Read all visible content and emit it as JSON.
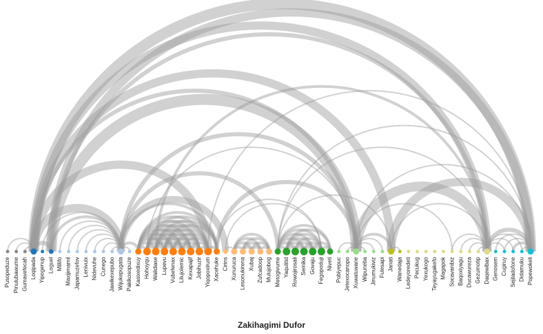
{
  "chart_data": {
    "type": "arc",
    "title": "Zakihagimi Dufor",
    "colors": {
      "arc": "#999999",
      "label": "#222222",
      "groups": [
        "#888888",
        "#1f77b4",
        "#aec7e8",
        "#ff7f0e",
        "#ffbb78",
        "#2ca02c",
        "#98df8a",
        "#bcbd22",
        "#dbdb8d",
        "#17becf",
        "#9edae5",
        "#e377c2"
      ]
    },
    "nodes": [
      {
        "name": "Pusopeduze",
        "group": 0,
        "size": 1
      },
      {
        "name": "Pinulubawume",
        "group": 0,
        "size": 1
      },
      {
        "name": "Gumavefecah",
        "group": 0,
        "size": 1
      },
      {
        "name": "Loqipada",
        "group": 1,
        "size": 3
      },
      {
        "name": "Yipogenup",
        "group": 1,
        "size": 1
      },
      {
        "name": "Loguel",
        "group": 1,
        "size": 2
      },
      {
        "name": "Millifo",
        "group": 2,
        "size": 1
      },
      {
        "name": "Maxijimamil",
        "group": 2,
        "size": 1
      },
      {
        "name": "Japamuzefov",
        "group": 2,
        "size": 1
      },
      {
        "name": "Lenivuix",
        "group": 2,
        "size": 1
      },
      {
        "name": "Nidevuhe",
        "group": 2,
        "size": 1
      },
      {
        "name": "Cunego",
        "group": 2,
        "size": 1
      },
      {
        "name": "Jawikexepubo",
        "group": 2,
        "size": 1
      },
      {
        "name": "Wijukepugata",
        "group": 2,
        "size": 3
      },
      {
        "name": "Pakikosopuze",
        "group": 2,
        "size": 1
      },
      {
        "name": "Kasixedixuy",
        "group": 3,
        "size": 3
      },
      {
        "name": "Hohoyqu",
        "group": 3,
        "size": 4
      },
      {
        "name": "Walidiase",
        "group": 3,
        "size": 4
      },
      {
        "name": "Lupevu",
        "group": 3,
        "size": 4
      },
      {
        "name": "Vubefenax",
        "group": 3,
        "size": 4
      },
      {
        "name": "Lilujolemic",
        "group": 3,
        "size": 4
      },
      {
        "name": "Kexapajif",
        "group": 3,
        "size": 4
      },
      {
        "name": "Jobihuzir",
        "group": 3,
        "size": 4
      },
      {
        "name": "Yiqopoxirum",
        "group": 3,
        "size": 4
      },
      {
        "name": "Xacehuke",
        "group": 3,
        "size": 3
      },
      {
        "name": "Cirins",
        "group": 4,
        "size": 2
      },
      {
        "name": "Xunuruca",
        "group": 4,
        "size": 3
      },
      {
        "name": "Lesonukirena",
        "group": 4,
        "size": 3
      },
      {
        "name": "Xubaj",
        "group": 4,
        "size": 3
      },
      {
        "name": "Zufcadoop",
        "group": 4,
        "size": 3
      },
      {
        "name": "Mulujobog",
        "group": 4,
        "size": 3
      },
      {
        "name": "Metogivume",
        "group": 5,
        "size": 3
      },
      {
        "name": "Yaqulitid",
        "group": 5,
        "size": 4
      },
      {
        "name": "Rowojirosali",
        "group": 5,
        "size": 4
      },
      {
        "name": "Semika",
        "group": 5,
        "size": 4
      },
      {
        "name": "Govaju",
        "group": 5,
        "size": 4
      },
      {
        "name": "Fegopoduji",
        "group": 5,
        "size": 4
      },
      {
        "name": "Niveti",
        "group": 5,
        "size": 3
      },
      {
        "name": "Pobiyepuc",
        "group": 6,
        "size": 1
      },
      {
        "name": "Jetexocanopo",
        "group": 6,
        "size": 1
      },
      {
        "name": "Xuwatuwane",
        "group": 6,
        "size": 3
      },
      {
        "name": "Wipuneba",
        "group": 6,
        "size": 1
      },
      {
        "name": "Jinumukiviz",
        "group": 6,
        "size": 1
      },
      {
        "name": "Fulesapi",
        "group": 6,
        "size": 1
      },
      {
        "name": "Janati",
        "group": 7,
        "size": 3
      },
      {
        "name": "Wanedaja",
        "group": 7,
        "size": 1
      },
      {
        "name": "Ledeyoredeti",
        "group": 8,
        "size": 1
      },
      {
        "name": "Pecukug",
        "group": 8,
        "size": 1
      },
      {
        "name": "Yexukogo",
        "group": 8,
        "size": 1
      },
      {
        "name": "Teyayugakefo",
        "group": 8,
        "size": 1
      },
      {
        "name": "Magapok",
        "group": 8,
        "size": 1
      },
      {
        "name": "Socavanibiz",
        "group": 8,
        "size": 1
      },
      {
        "name": "Baqoxiyagu",
        "group": 8,
        "size": 1
      },
      {
        "name": "Ducawureza",
        "group": 8,
        "size": 1
      },
      {
        "name": "Gezumotip",
        "group": 8,
        "size": 1
      },
      {
        "name": "Daqewibax",
        "group": 8,
        "size": 3
      },
      {
        "name": "Genosem",
        "group": 9,
        "size": 1
      },
      {
        "name": "Cugiruy",
        "group": 9,
        "size": 1
      },
      {
        "name": "Sejiladofone",
        "group": 9,
        "size": 1
      },
      {
        "name": "Didamuku",
        "group": 9,
        "size": 1
      },
      {
        "name": "Popewokeli",
        "group": 9,
        "size": 3
      }
    ],
    "links": [
      {
        "source": "Loqipada",
        "target": "Popewokeli",
        "value": 8
      },
      {
        "source": "Loqipada",
        "target": "Daqewibax",
        "value": 6
      },
      {
        "source": "Loqipada",
        "target": "Janati",
        "value": 6
      },
      {
        "source": "Loqipada",
        "target": "Xuwatuwane",
        "value": 3
      },
      {
        "source": "Loguel",
        "target": "Popewokeli",
        "value": 6
      },
      {
        "source": "Loguel",
        "target": "Daqewibax",
        "value": 3
      },
      {
        "source": "Loguel",
        "target": "Xuwatuwane",
        "value": 8
      },
      {
        "source": "Loqipada",
        "target": "Yiqopoxirum",
        "value": 6
      },
      {
        "source": "Loqipada",
        "target": "Loguel",
        "value": 3
      },
      {
        "source": "Pinulubawume",
        "target": "Loqipada",
        "value": 1
      },
      {
        "source": "Gumavefecah",
        "target": "Loqipada",
        "value": 1
      },
      {
        "source": "Pusopeduze",
        "target": "Loqipada",
        "value": 1
      },
      {
        "source": "Yipogenup",
        "target": "Wijukepugata",
        "value": 1
      },
      {
        "source": "Millifo",
        "target": "Wijukepugata",
        "value": 1
      },
      {
        "source": "Maxijimamil",
        "target": "Wijukepugata",
        "value": 1
      },
      {
        "source": "Japamuzefov",
        "target": "Wijukepugata",
        "value": 1
      },
      {
        "source": "Lenivuix",
        "target": "Wijukepugata",
        "value": 1
      },
      {
        "source": "Nidevuhe",
        "target": "Wijukepugata",
        "value": 1
      },
      {
        "source": "Cunego",
        "target": "Wijukepugata",
        "value": 1
      },
      {
        "source": "Jawikexepubo",
        "target": "Wijukepugata",
        "value": 1
      },
      {
        "source": "Wijukepugata",
        "target": "Pakikosopuze",
        "value": 1
      },
      {
        "source": "Wijukepugata",
        "target": "Xacehuke",
        "value": 2
      },
      {
        "source": "Wijukepugata",
        "target": "Cirins",
        "value": 5
      },
      {
        "source": "Wijukepugata",
        "target": "Metogivume",
        "value": 3
      },
      {
        "source": "Wijukepugata",
        "target": "Xuwatuwane",
        "value": 3
      },
      {
        "source": "Wijukepugata",
        "target": "Kasixedixuy",
        "value": 2
      },
      {
        "source": "Loqipada",
        "target": "Wijukepugata",
        "value": 6
      },
      {
        "source": "Loguel",
        "target": "Wijukepugata",
        "value": 2
      },
      {
        "source": "Kasixedixuy",
        "target": "Hohoyqu",
        "value": 2
      },
      {
        "source": "Kasixedixuy",
        "target": "Walidiase",
        "value": 2
      },
      {
        "source": "Kasixedixuy",
        "target": "Lupevu",
        "value": 2
      },
      {
        "source": "Kasixedixuy",
        "target": "Vubefenax",
        "value": 2
      },
      {
        "source": "Kasixedixuy",
        "target": "Lilujolemic",
        "value": 2
      },
      {
        "source": "Kasixedixuy",
        "target": "Kexapajif",
        "value": 2
      },
      {
        "source": "Kasixedixuy",
        "target": "Jobihuzir",
        "value": 2
      },
      {
        "source": "Kasixedixuy",
        "target": "Yiqopoxirum",
        "value": 2
      },
      {
        "source": "Kasixedixuy",
        "target": "Xacehuke",
        "value": 2
      },
      {
        "source": "Hohoyqu",
        "target": "Walidiase",
        "value": 2
      },
      {
        "source": "Hohoyqu",
        "target": "Lupevu",
        "value": 2
      },
      {
        "source": "Hohoyqu",
        "target": "Vubefenax",
        "value": 2
      },
      {
        "source": "Hohoyqu",
        "target": "Lilujolemic",
        "value": 2
      },
      {
        "source": "Hohoyqu",
        "target": "Kexapajif",
        "value": 2
      },
      {
        "source": "Hohoyqu",
        "target": "Jobihuzir",
        "value": 2
      },
      {
        "source": "Hohoyqu",
        "target": "Yiqopoxirum",
        "value": 2
      },
      {
        "source": "Hohoyqu",
        "target": "Xacehuke",
        "value": 2
      },
      {
        "source": "Walidiase",
        "target": "Lupevu",
        "value": 2
      },
      {
        "source": "Walidiase",
        "target": "Vubefenax",
        "value": 2
      },
      {
        "source": "Walidiase",
        "target": "Lilujolemic",
        "value": 2
      },
      {
        "source": "Walidiase",
        "target": "Kexapajif",
        "value": 2
      },
      {
        "source": "Walidiase",
        "target": "Jobihuzir",
        "value": 2
      },
      {
        "source": "Walidiase",
        "target": "Yiqopoxirum",
        "value": 2
      },
      {
        "source": "Walidiase",
        "target": "Xacehuke",
        "value": 2
      },
      {
        "source": "Lupevu",
        "target": "Vubefenax",
        "value": 2
      },
      {
        "source": "Lupevu",
        "target": "Lilujolemic",
        "value": 2
      },
      {
        "source": "Lupevu",
        "target": "Kexapajif",
        "value": 2
      },
      {
        "source": "Lupevu",
        "target": "Jobihuzir",
        "value": 2
      },
      {
        "source": "Lupevu",
        "target": "Yiqopoxirum",
        "value": 2
      },
      {
        "source": "Lupevu",
        "target": "Xacehuke",
        "value": 2
      },
      {
        "source": "Vubefenax",
        "target": "Lilujolemic",
        "value": 2
      },
      {
        "source": "Vubefenax",
        "target": "Kexapajif",
        "value": 2
      },
      {
        "source": "Vubefenax",
        "target": "Jobihuzir",
        "value": 2
      },
      {
        "source": "Vubefenax",
        "target": "Yiqopoxirum",
        "value": 2
      },
      {
        "source": "Lilujolemic",
        "target": "Kexapajif",
        "value": 2
      },
      {
        "source": "Lilujolemic",
        "target": "Jobihuzir",
        "value": 2
      },
      {
        "source": "Lilujolemic",
        "target": "Yiqopoxirum",
        "value": 2
      },
      {
        "source": "Kexapajif",
        "target": "Jobihuzir",
        "value": 2
      },
      {
        "source": "Kexapajif",
        "target": "Yiqopoxirum",
        "value": 2
      },
      {
        "source": "Jobihuzir",
        "target": "Yiqopoxirum",
        "value": 2
      },
      {
        "source": "Yiqopoxirum",
        "target": "Xacehuke",
        "value": 2
      },
      {
        "source": "Walidiase",
        "target": "Daqewibax",
        "value": 2
      },
      {
        "source": "Hohoyqu",
        "target": "Xuwatuwane",
        "value": 1
      },
      {
        "source": "Xacehuke",
        "target": "Xuwatuwane",
        "value": 3
      },
      {
        "source": "Xacehuke",
        "target": "Fegopoduji",
        "value": 1
      },
      {
        "source": "Cirins",
        "target": "Fegopoduji",
        "value": 1
      },
      {
        "source": "Yiqopoxirum",
        "target": "Popewokeli",
        "value": 1
      },
      {
        "source": "Xunuruca",
        "target": "Lesonukirena",
        "value": 2
      },
      {
        "source": "Xunuruca",
        "target": "Xubaj",
        "value": 2
      },
      {
        "source": "Xunuruca",
        "target": "Zufcadoop",
        "value": 2
      },
      {
        "source": "Xunuruca",
        "target": "Mulujobog",
        "value": 2
      },
      {
        "source": "Lesonukirena",
        "target": "Xubaj",
        "value": 2
      },
      {
        "source": "Lesonukirena",
        "target": "Zufcadoop",
        "value": 2
      },
      {
        "source": "Lesonukirena",
        "target": "Mulujobog",
        "value": 2
      },
      {
        "source": "Xubaj",
        "target": "Zufcadoop",
        "value": 2
      },
      {
        "source": "Xubaj",
        "target": "Mulujobog",
        "value": 2
      },
      {
        "source": "Zufcadoop",
        "target": "Mulujobog",
        "value": 2
      },
      {
        "source": "Cirins",
        "target": "Xunuruca",
        "value": 1
      },
      {
        "source": "Metogivume",
        "target": "Yaqulitid",
        "value": 2
      },
      {
        "source": "Metogivume",
        "target": "Rowojirosali",
        "value": 2
      },
      {
        "source": "Metogivume",
        "target": "Semika",
        "value": 2
      },
      {
        "source": "Metogivume",
        "target": "Govaju",
        "value": 2
      },
      {
        "source": "Metogivume",
        "target": "Fegopoduji",
        "value": 2
      },
      {
        "source": "Metogivume",
        "target": "Niveti",
        "value": 2
      },
      {
        "source": "Yaqulitid",
        "target": "Rowojirosali",
        "value": 2
      },
      {
        "source": "Yaqulitid",
        "target": "Semika",
        "value": 2
      },
      {
        "source": "Yaqulitid",
        "target": "Govaju",
        "value": 2
      },
      {
        "source": "Yaqulitid",
        "target": "Fegopoduji",
        "value": 2
      },
      {
        "source": "Yaqulitid",
        "target": "Niveti",
        "value": 2
      },
      {
        "source": "Rowojirosali",
        "target": "Semika",
        "value": 2
      },
      {
        "source": "Rowojirosali",
        "target": "Govaju",
        "value": 2
      },
      {
        "source": "Rowojirosali",
        "target": "Fegopoduji",
        "value": 2
      },
      {
        "source": "Semika",
        "target": "Govaju",
        "value": 2
      },
      {
        "source": "Semika",
        "target": "Fegopoduji",
        "value": 2
      },
      {
        "source": "Govaju",
        "target": "Fegopoduji",
        "value": 2
      },
      {
        "source": "Govaju",
        "target": "Niveti",
        "value": 2
      },
      {
        "source": "Fegopoduji",
        "target": "Niveti",
        "value": 2
      },
      {
        "source": "Metogivume",
        "target": "Daqewibax",
        "value": 1
      },
      {
        "source": "Metogivume",
        "target": "Janati",
        "value": 1
      },
      {
        "source": "Metogivume",
        "target": "Popewokeli",
        "value": 1
      },
      {
        "source": "Xuwatuwane",
        "target": "Janati",
        "value": 2
      },
      {
        "source": "Xuwatuwane",
        "target": "Popewokeli",
        "value": 1
      },
      {
        "source": "Xuwatuwane",
        "target": "Daqewibax",
        "value": 7
      },
      {
        "source": "Pobiyepuc",
        "target": "Xuwatuwane",
        "value": 1
      },
      {
        "source": "Jetexocanopo",
        "target": "Xuwatuwane",
        "value": 1
      },
      {
        "source": "Xuwatuwane",
        "target": "Wipuneba",
        "value": 1
      },
      {
        "source": "Xuwatuwane",
        "target": "Jinumukiviz",
        "value": 1
      },
      {
        "source": "Xuwatuwane",
        "target": "Fulesapi",
        "value": 1
      },
      {
        "source": "Xuwatuwane",
        "target": "Socavanibiz",
        "value": 1
      },
      {
        "source": "Janati",
        "target": "Wanedaja",
        "value": 1
      },
      {
        "source": "Janati",
        "target": "Popewokeli",
        "value": 6
      },
      {
        "source": "Janati",
        "target": "Daqewibax",
        "value": 1
      },
      {
        "source": "Socavanibiz",
        "target": "Daqewibax",
        "value": 1
      },
      {
        "source": "Baqoxiyagu",
        "target": "Daqewibax",
        "value": 1
      },
      {
        "source": "Ducawureza",
        "target": "Daqewibax",
        "value": 1
      },
      {
        "source": "Gezumotip",
        "target": "Daqewibax",
        "value": 1
      },
      {
        "source": "Daqewibax",
        "target": "Popewokeli",
        "value": 3
      },
      {
        "source": "Daqewibax",
        "target": "Cugiruy",
        "value": 1
      },
      {
        "source": "Daqewibax",
        "target": "Sejiladofone",
        "value": 1
      },
      {
        "source": "Genosem",
        "target": "Popewokeli",
        "value": 1
      },
      {
        "source": "Cugiruy",
        "target": "Popewokeli",
        "value": 1
      },
      {
        "source": "Sejiladofone",
        "target": "Popewokeli",
        "value": 2
      },
      {
        "source": "Didamuku",
        "target": "Popewokeli",
        "value": 1
      },
      {
        "source": "Daqewibax",
        "target": "Didamuku",
        "value": 1
      }
    ]
  }
}
